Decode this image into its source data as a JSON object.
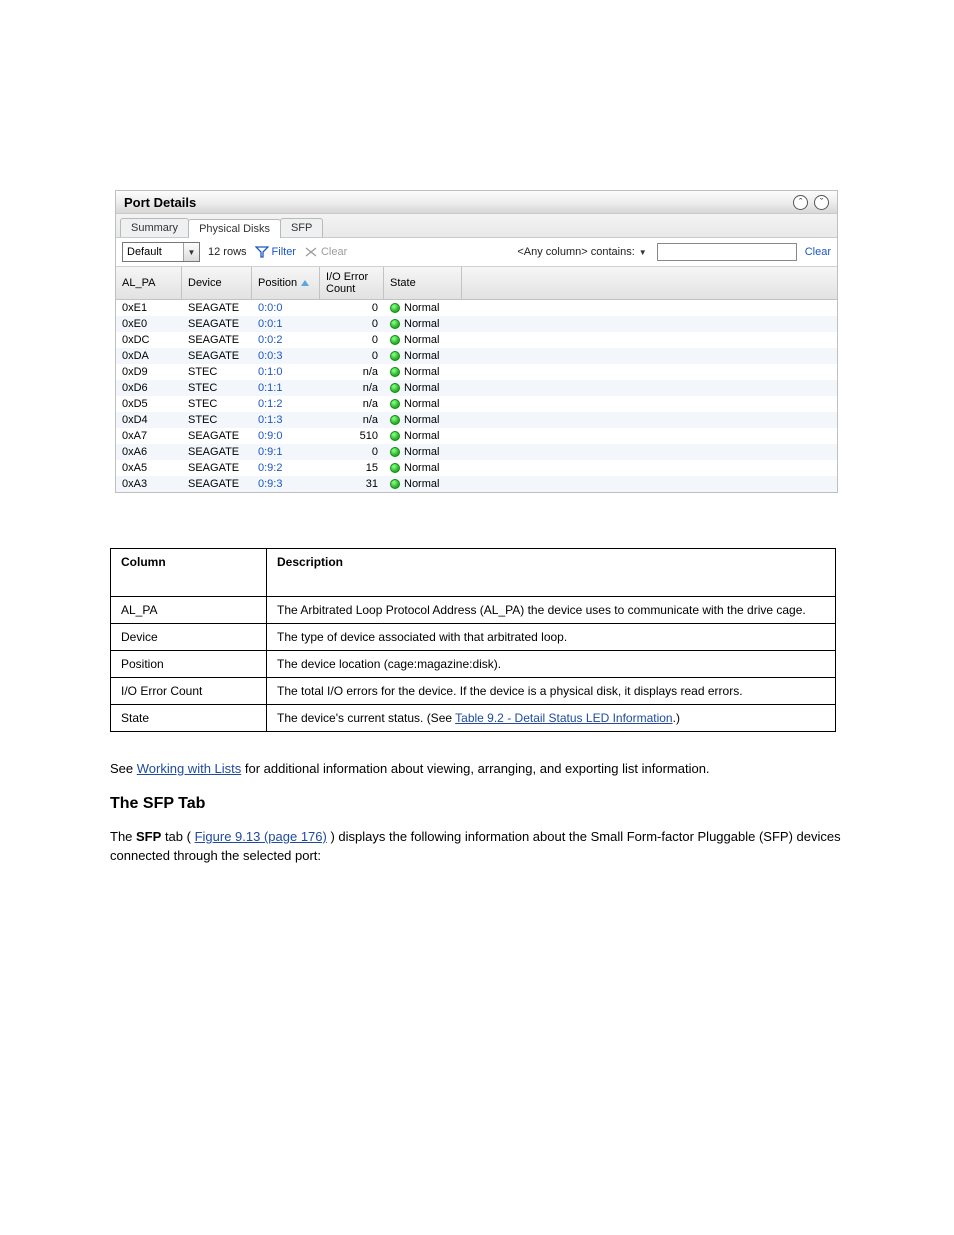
{
  "panel": {
    "title": "Port Details",
    "tabs": [
      "Summary",
      "Physical Disks",
      "SFP"
    ],
    "active_tab_index": 1,
    "view_dropdown": "Default",
    "row_count_text": "12 rows",
    "filter_label": "Filter",
    "clear_filter_label": "Clear",
    "contains_label": "<Any column> contains:",
    "clear_link": "Clear",
    "columns": [
      "AL_PA",
      "Device",
      "Position",
      "I/O Error Count",
      "State"
    ],
    "sort_column_index": 2,
    "rows": [
      {
        "al_pa": "0xE1",
        "device": "SEAGATE",
        "position": "0:0:0",
        "io_error": "0",
        "state": "Normal"
      },
      {
        "al_pa": "0xE0",
        "device": "SEAGATE",
        "position": "0:0:1",
        "io_error": "0",
        "state": "Normal"
      },
      {
        "al_pa": "0xDC",
        "device": "SEAGATE",
        "position": "0:0:2",
        "io_error": "0",
        "state": "Normal"
      },
      {
        "al_pa": "0xDA",
        "device": "SEAGATE",
        "position": "0:0:3",
        "io_error": "0",
        "state": "Normal"
      },
      {
        "al_pa": "0xD9",
        "device": "STEC",
        "position": "0:1:0",
        "io_error": "n/a",
        "state": "Normal"
      },
      {
        "al_pa": "0xD6",
        "device": "STEC",
        "position": "0:1:1",
        "io_error": "n/a",
        "state": "Normal"
      },
      {
        "al_pa": "0xD5",
        "device": "STEC",
        "position": "0:1:2",
        "io_error": "n/a",
        "state": "Normal"
      },
      {
        "al_pa": "0xD4",
        "device": "STEC",
        "position": "0:1:3",
        "io_error": "n/a",
        "state": "Normal"
      },
      {
        "al_pa": "0xA7",
        "device": "SEAGATE",
        "position": "0:9:0",
        "io_error": "510",
        "state": "Normal"
      },
      {
        "al_pa": "0xA6",
        "device": "SEAGATE",
        "position": "0:9:1",
        "io_error": "0",
        "state": "Normal"
      },
      {
        "al_pa": "0xA5",
        "device": "SEAGATE",
        "position": "0:9:2",
        "io_error": "15",
        "state": "Normal"
      },
      {
        "al_pa": "0xA3",
        "device": "SEAGATE",
        "position": "0:9:3",
        "io_error": "31",
        "state": "Normal"
      }
    ]
  },
  "desc_table": {
    "header": [
      "Column",
      "Description"
    ],
    "rows": [
      [
        "AL_PA",
        "The Arbitrated Loop Protocol Address (AL_PA) the device uses to communicate with the drive cage."
      ],
      [
        "Device",
        "The type of device associated with that arbitrated loop."
      ],
      [
        "Position",
        "The device location (cage:magazine:disk)."
      ],
      [
        "I/O Error Count",
        "The total I/O errors for the device. If the device is a physical disk, it displays read errors."
      ],
      [
        "State",
        "The device's current status. (See Table 9.2 - Detail Status LED Information.)"
      ]
    ]
  },
  "narrative": {
    "p1_a": "See ",
    "p1_link": "Working with Lists",
    "p1_b": " for additional information about viewing, arranging, and exporting list information.",
    "h3": "The SFP Tab",
    "p2_a": "The ",
    "p2_bold": "SFP",
    "p2_b": " tab (",
    "p2_link": "Figure 9.13 (page 176)",
    "p2_c": ") displays the following information about the Small Form-factor Pluggable (SFP) devices connected through the selected port:"
  }
}
